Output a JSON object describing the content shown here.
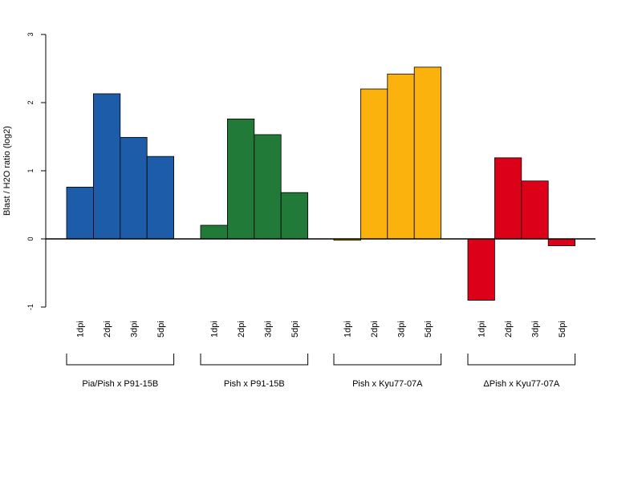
{
  "chart_data": {
    "type": "bar",
    "ylabel": "Blast / H2O ratio (log2)",
    "ylim": [
      -1,
      3
    ],
    "yticks": [
      -1,
      0,
      1,
      2,
      3
    ],
    "category_labels": [
      "1dpi",
      "2dpi",
      "3dpi",
      "5dpi"
    ],
    "groups": [
      {
        "name": "Pia/Pish x P91-15B",
        "color": "#1c5ca8",
        "values": [
          0.76,
          2.13,
          1.49,
          1.21
        ]
      },
      {
        "name": "Pish x P91-15B",
        "color": "#227a38",
        "values": [
          0.2,
          1.76,
          1.53,
          0.68
        ]
      },
      {
        "name": "Pish x Kyu77-07A",
        "color": "#fbb20c",
        "values": [
          -0.02,
          2.2,
          2.42,
          2.52
        ]
      },
      {
        "name": "ΔPish x Kyu77-07A",
        "color": "#dc0019",
        "values": [
          -0.9,
          1.19,
          0.85,
          -0.1
        ]
      }
    ]
  }
}
